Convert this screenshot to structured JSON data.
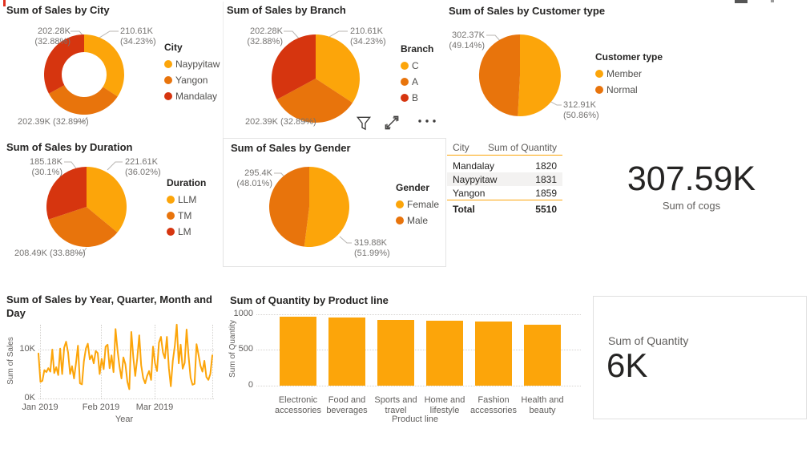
{
  "page": {
    "background": "#FFFFFF"
  },
  "theme": {
    "yellow": "#FCA50A",
    "orange": "#E8740C",
    "red": "#D6350F",
    "title_color": "#252423",
    "label_color": "#767472",
    "axis_color": "#605E5C",
    "grid_color": "#D4D2CF",
    "rule_color": "#FCA50A",
    "row_shade": "#F3F2F1",
    "card_border": "#E0E0E0",
    "leader_color": "#B8B5B2",
    "icon_color": "#3B3A39"
  },
  "hover_toolbar": {
    "icons": [
      "filter-icon",
      "focus-mode-icon",
      "more-options-icon"
    ]
  },
  "chart_data": [
    {
      "id": "sales-by-city",
      "type": "donut",
      "title": "Sum of Sales by City",
      "legend_title": "City",
      "legend_position": "right",
      "slices": [
        {
          "label": "Naypyitaw",
          "value": 210610,
          "value_label": "210.61K",
          "pct": 34.23,
          "pct_label": "(34.23%)",
          "color": "#FCA50A"
        },
        {
          "label": "Yangon",
          "value": 202390,
          "value_label": "202.39K",
          "pct": 32.89,
          "pct_label": "(32.89%)",
          "color": "#E8740C"
        },
        {
          "label": "Mandalay",
          "value": 202280,
          "value_label": "202.28K",
          "pct": 32.88,
          "pct_label": "(32.88%)",
          "color": "#D6350F"
        }
      ]
    },
    {
      "id": "sales-by-branch",
      "type": "pie",
      "title": "Sum of Sales by Branch",
      "legend_title": "Branch",
      "legend_position": "right",
      "slices": [
        {
          "label": "C",
          "value": 210610,
          "value_label": "210.61K",
          "pct": 34.23,
          "pct_label": "(34.23%)",
          "color": "#FCA50A"
        },
        {
          "label": "A",
          "value": 202390,
          "value_label": "202.39K",
          "pct": 32.89,
          "pct_label": "(32.89%)",
          "color": "#E8740C"
        },
        {
          "label": "B",
          "value": 202280,
          "value_label": "202.28K",
          "pct": 32.88,
          "pct_label": "(32.88%)",
          "color": "#D6350F"
        }
      ]
    },
    {
      "id": "sales-by-customer-type",
      "type": "pie",
      "title": "Sum of Sales by Customer type",
      "legend_title": "Customer type",
      "legend_position": "right",
      "slices": [
        {
          "label": "Member",
          "value": 312910,
          "value_label": "312.91K",
          "pct": 50.86,
          "pct_label": "(50.86%)",
          "color": "#FCA50A"
        },
        {
          "label": "Normal",
          "value": 302370,
          "value_label": "302.37K",
          "pct": 49.14,
          "pct_label": "(49.14%)",
          "color": "#E8740C"
        }
      ]
    },
    {
      "id": "sales-by-duration",
      "type": "pie",
      "title": "Sum of Sales by Duration",
      "legend_title": "Duration",
      "legend_position": "right",
      "slices": [
        {
          "label": "LLM",
          "value": 221610,
          "value_label": "221.61K",
          "pct": 36.02,
          "pct_label": "(36.02%)",
          "color": "#FCA50A"
        },
        {
          "label": "TM",
          "value": 208490,
          "value_label": "208.49K",
          "pct": 33.88,
          "pct_label": "(33.88%)",
          "color": "#E8740C"
        },
        {
          "label": "LM",
          "value": 185180,
          "value_label": "185.18K",
          "pct": 30.1,
          "pct_label": "(30.1%)",
          "color": "#D6350F"
        }
      ]
    },
    {
      "id": "sales-by-gender",
      "type": "pie",
      "title": "Sum of Sales by Gender",
      "legend_title": "Gender",
      "legend_position": "right",
      "slices": [
        {
          "label": "Female",
          "value": 319880,
          "value_label": "319.88K",
          "pct": 51.99,
          "pct_label": "(51.99%)",
          "color": "#FCA50A"
        },
        {
          "label": "Male",
          "value": 295400,
          "value_label": "295.4K",
          "pct": 48.01,
          "pct_label": "(48.01%)",
          "color": "#E8740C"
        }
      ]
    },
    {
      "id": "quantity-by-city-table",
      "type": "table",
      "columns": [
        "City",
        "Sum of Quantity"
      ],
      "rows": [
        [
          "Mandalay",
          1820
        ],
        [
          "Naypyitaw",
          1831
        ],
        [
          "Yangon",
          1859
        ]
      ],
      "total_row": [
        "Total",
        5510
      ],
      "shaded_row_index": 1
    },
    {
      "id": "cogs-card",
      "type": "card",
      "value": "307.59K",
      "label": "Sum of cogs"
    },
    {
      "id": "daily-sales-line",
      "type": "line",
      "title": "Sum of Sales by Year, Quarter, Month and Day",
      "xlabel": "Year",
      "ylabel": "Sum of Sales",
      "x_ticks": [
        "Jan 2019",
        "Feb 2019",
        "Mar 2019"
      ],
      "y_ticks": [
        "0K",
        "10K"
      ],
      "ylim_k": [
        0,
        15.5
      ],
      "unit": "K",
      "color": "#FCA50A",
      "values_k": [
        9.2,
        3.4,
        3.6,
        5.8,
        5.4,
        6.2,
        5.5,
        10.0,
        5.2,
        6.4,
        4.8,
        10.2,
        5.0,
        10.4,
        11.6,
        9.4,
        5.0,
        6.6,
        4.1,
        7.3,
        10.8,
        3.1,
        2.9,
        7.6,
        10.2,
        11.2,
        8.0,
        8.8,
        7.2,
        9.7,
        9.3,
        5.0,
        8.1,
        6.0,
        10.6,
        11.0,
        6.2,
        8.8,
        5.4,
        14.2,
        10.0,
        6.6,
        4.1,
        8.4,
        7.0,
        3.4,
        1.9,
        13.6,
        8.4,
        4.6,
        8.2,
        12.9,
        6.8,
        4.2,
        3.1,
        4.6,
        5.6,
        3.8,
        10.6,
        7.2,
        5.6,
        11.4,
        12.6,
        9.4,
        8.2,
        12.6,
        6.2,
        2.5,
        7.7,
        10.6,
        15.1,
        7.2,
        11.0,
        6.1,
        7.3,
        14.1,
        8.6,
        4.2,
        2.8,
        3.0,
        11.1,
        9.0,
        6.7,
        5.5,
        7.7,
        4.4,
        3.8,
        5.0,
        8.8
      ]
    },
    {
      "id": "quantity-by-product-line",
      "type": "bar",
      "title": "Sum of Quantity by Product line",
      "xlabel": "Product line",
      "ylabel": "Sum of Quantity",
      "y_ticks": [
        "0",
        "500",
        "1000"
      ],
      "ylim": [
        0,
        1000
      ],
      "color": "#FCA50A",
      "categories": [
        "Electronic accessories",
        "Food and beverages",
        "Sports and travel",
        "Home and lifestyle",
        "Fashion accessories",
        "Health and beauty"
      ],
      "values": [
        971,
        952,
        920,
        911,
        902,
        854
      ]
    },
    {
      "id": "quantity-card",
      "type": "card",
      "label": "Sum of Quantity",
      "value": "6K",
      "bordered": true
    }
  ]
}
